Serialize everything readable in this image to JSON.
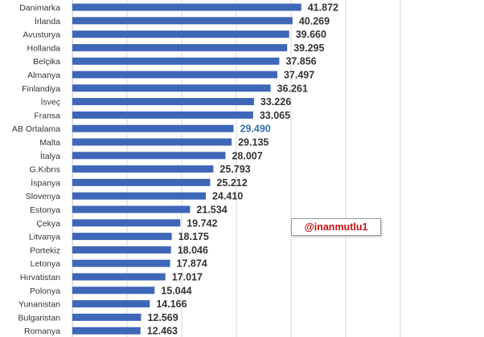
{
  "chart_data": {
    "type": "bar",
    "orientation": "horizontal",
    "categories": [
      "Danimarka",
      "İrlanda",
      "Avusturya",
      "Hollanda",
      "Belçika",
      "Almanya",
      "Finlandiya",
      "İsveç",
      "Fransa",
      "AB Ortalama",
      "Malta",
      "İtalya",
      "G.Kıbrıs",
      "İspanya",
      "Slovenya",
      "Estonya",
      "Çekya",
      "Litvanya",
      "Portekiz",
      "Letonya",
      "Hırvatistan",
      "Polonya",
      "Yunanistan",
      "Bulgaristan",
      "Romanya"
    ],
    "values": [
      41.872,
      40.269,
      39.66,
      39.295,
      37.856,
      37.497,
      36.261,
      33.226,
      33.065,
      29.49,
      29.135,
      28.007,
      25.793,
      25.212,
      24.41,
      21.534,
      19.742,
      18.175,
      18.046,
      17.874,
      17.017,
      15.044,
      14.166,
      12.569,
      12.463
    ],
    "value_labels": [
      "41.872",
      "40.269",
      "39.660",
      "39.295",
      "37.856",
      "37.497",
      "36.261",
      "33.226",
      "33.065",
      "29.490",
      "29.135",
      "28.007",
      "25.793",
      "25.212",
      "24.410",
      "21.534",
      "19.742",
      "18.175",
      "18.046",
      "17.874",
      "17.017",
      "15.044",
      "14.166",
      "12.569",
      "12.463"
    ],
    "highlight_category": "AB Ortalama",
    "xlim": [
      0,
      60
    ],
    "grid": "vertical",
    "title": "",
    "xlabel": "",
    "ylabel": "",
    "bar_color": "#3f67b8",
    "highlight_label_color": "#3b6eb0"
  },
  "watermark": "@inanmutlu1"
}
